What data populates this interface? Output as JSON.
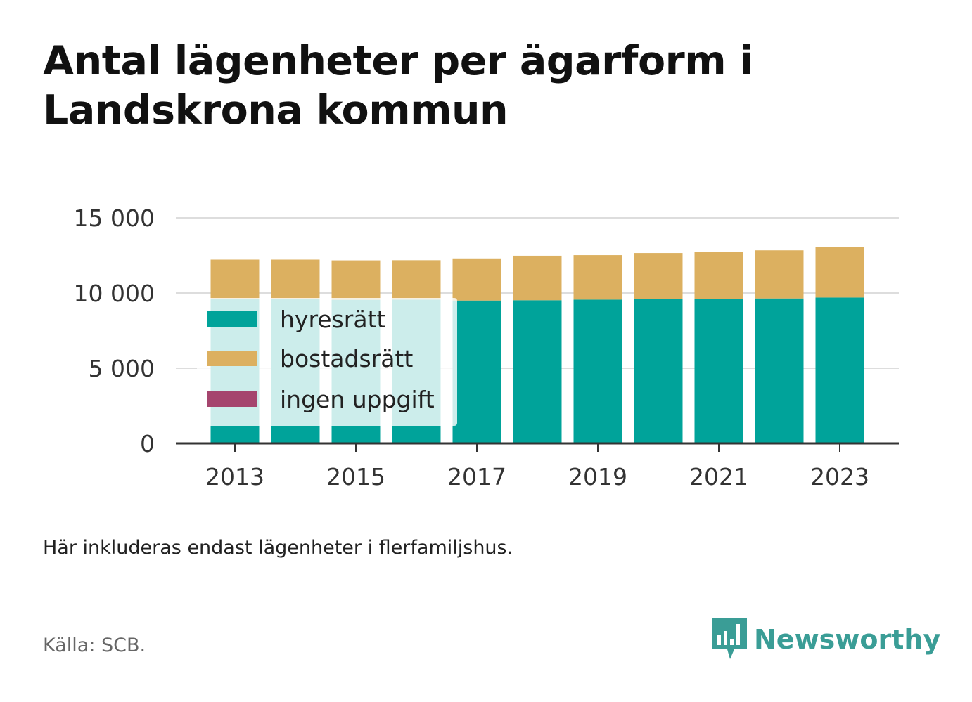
{
  "title": "Antal lägenheter per ägarform i Landskrona kommun",
  "note": "Här inkluderas endast lägenheter i flerfamiljshus.",
  "source": "Källa: SCB.",
  "brand": {
    "name": "Newsworthy",
    "icon": "bar-chart-speech-bubble-icon",
    "color": "#3a9d96"
  },
  "colors": {
    "hyresratt": "#00a39a",
    "bostadsratt": "#dcb060",
    "ingen": "#a5456e",
    "grid": "#dddddd",
    "axis": "#333333"
  },
  "chart_data": {
    "type": "bar",
    "stacked": true,
    "categories": [
      "2013",
      "2014",
      "2015",
      "2016",
      "2017",
      "2018",
      "2019",
      "2020",
      "2021",
      "2022",
      "2023"
    ],
    "series": [
      {
        "name": "hyresrätt",
        "color": "#00a39a",
        "values": [
          9620,
          9600,
          9550,
          9560,
          9500,
          9520,
          9560,
          9600,
          9620,
          9640,
          9700
        ]
      },
      {
        "name": "bostadsrätt",
        "color": "#dcb060",
        "values": [
          2600,
          2620,
          2620,
          2620,
          2800,
          2960,
          2960,
          3060,
          3120,
          3200,
          3340
        ]
      },
      {
        "name": "ingen uppgift",
        "color": "#a5456e",
        "values": [
          0,
          0,
          0,
          0,
          0,
          0,
          0,
          0,
          0,
          0,
          0
        ]
      }
    ],
    "ylim": [
      0,
      15000
    ],
    "yticks": [
      0,
      5000,
      10000,
      15000
    ],
    "ytick_labels": [
      "0",
      "5 000",
      "10 000",
      "15 000"
    ],
    "xtick_labels": [
      "2013",
      "2015",
      "2017",
      "2019",
      "2021",
      "2023"
    ],
    "grid": true,
    "legend_position": "bottom-left inside",
    "xlabel": "",
    "ylabel": ""
  }
}
